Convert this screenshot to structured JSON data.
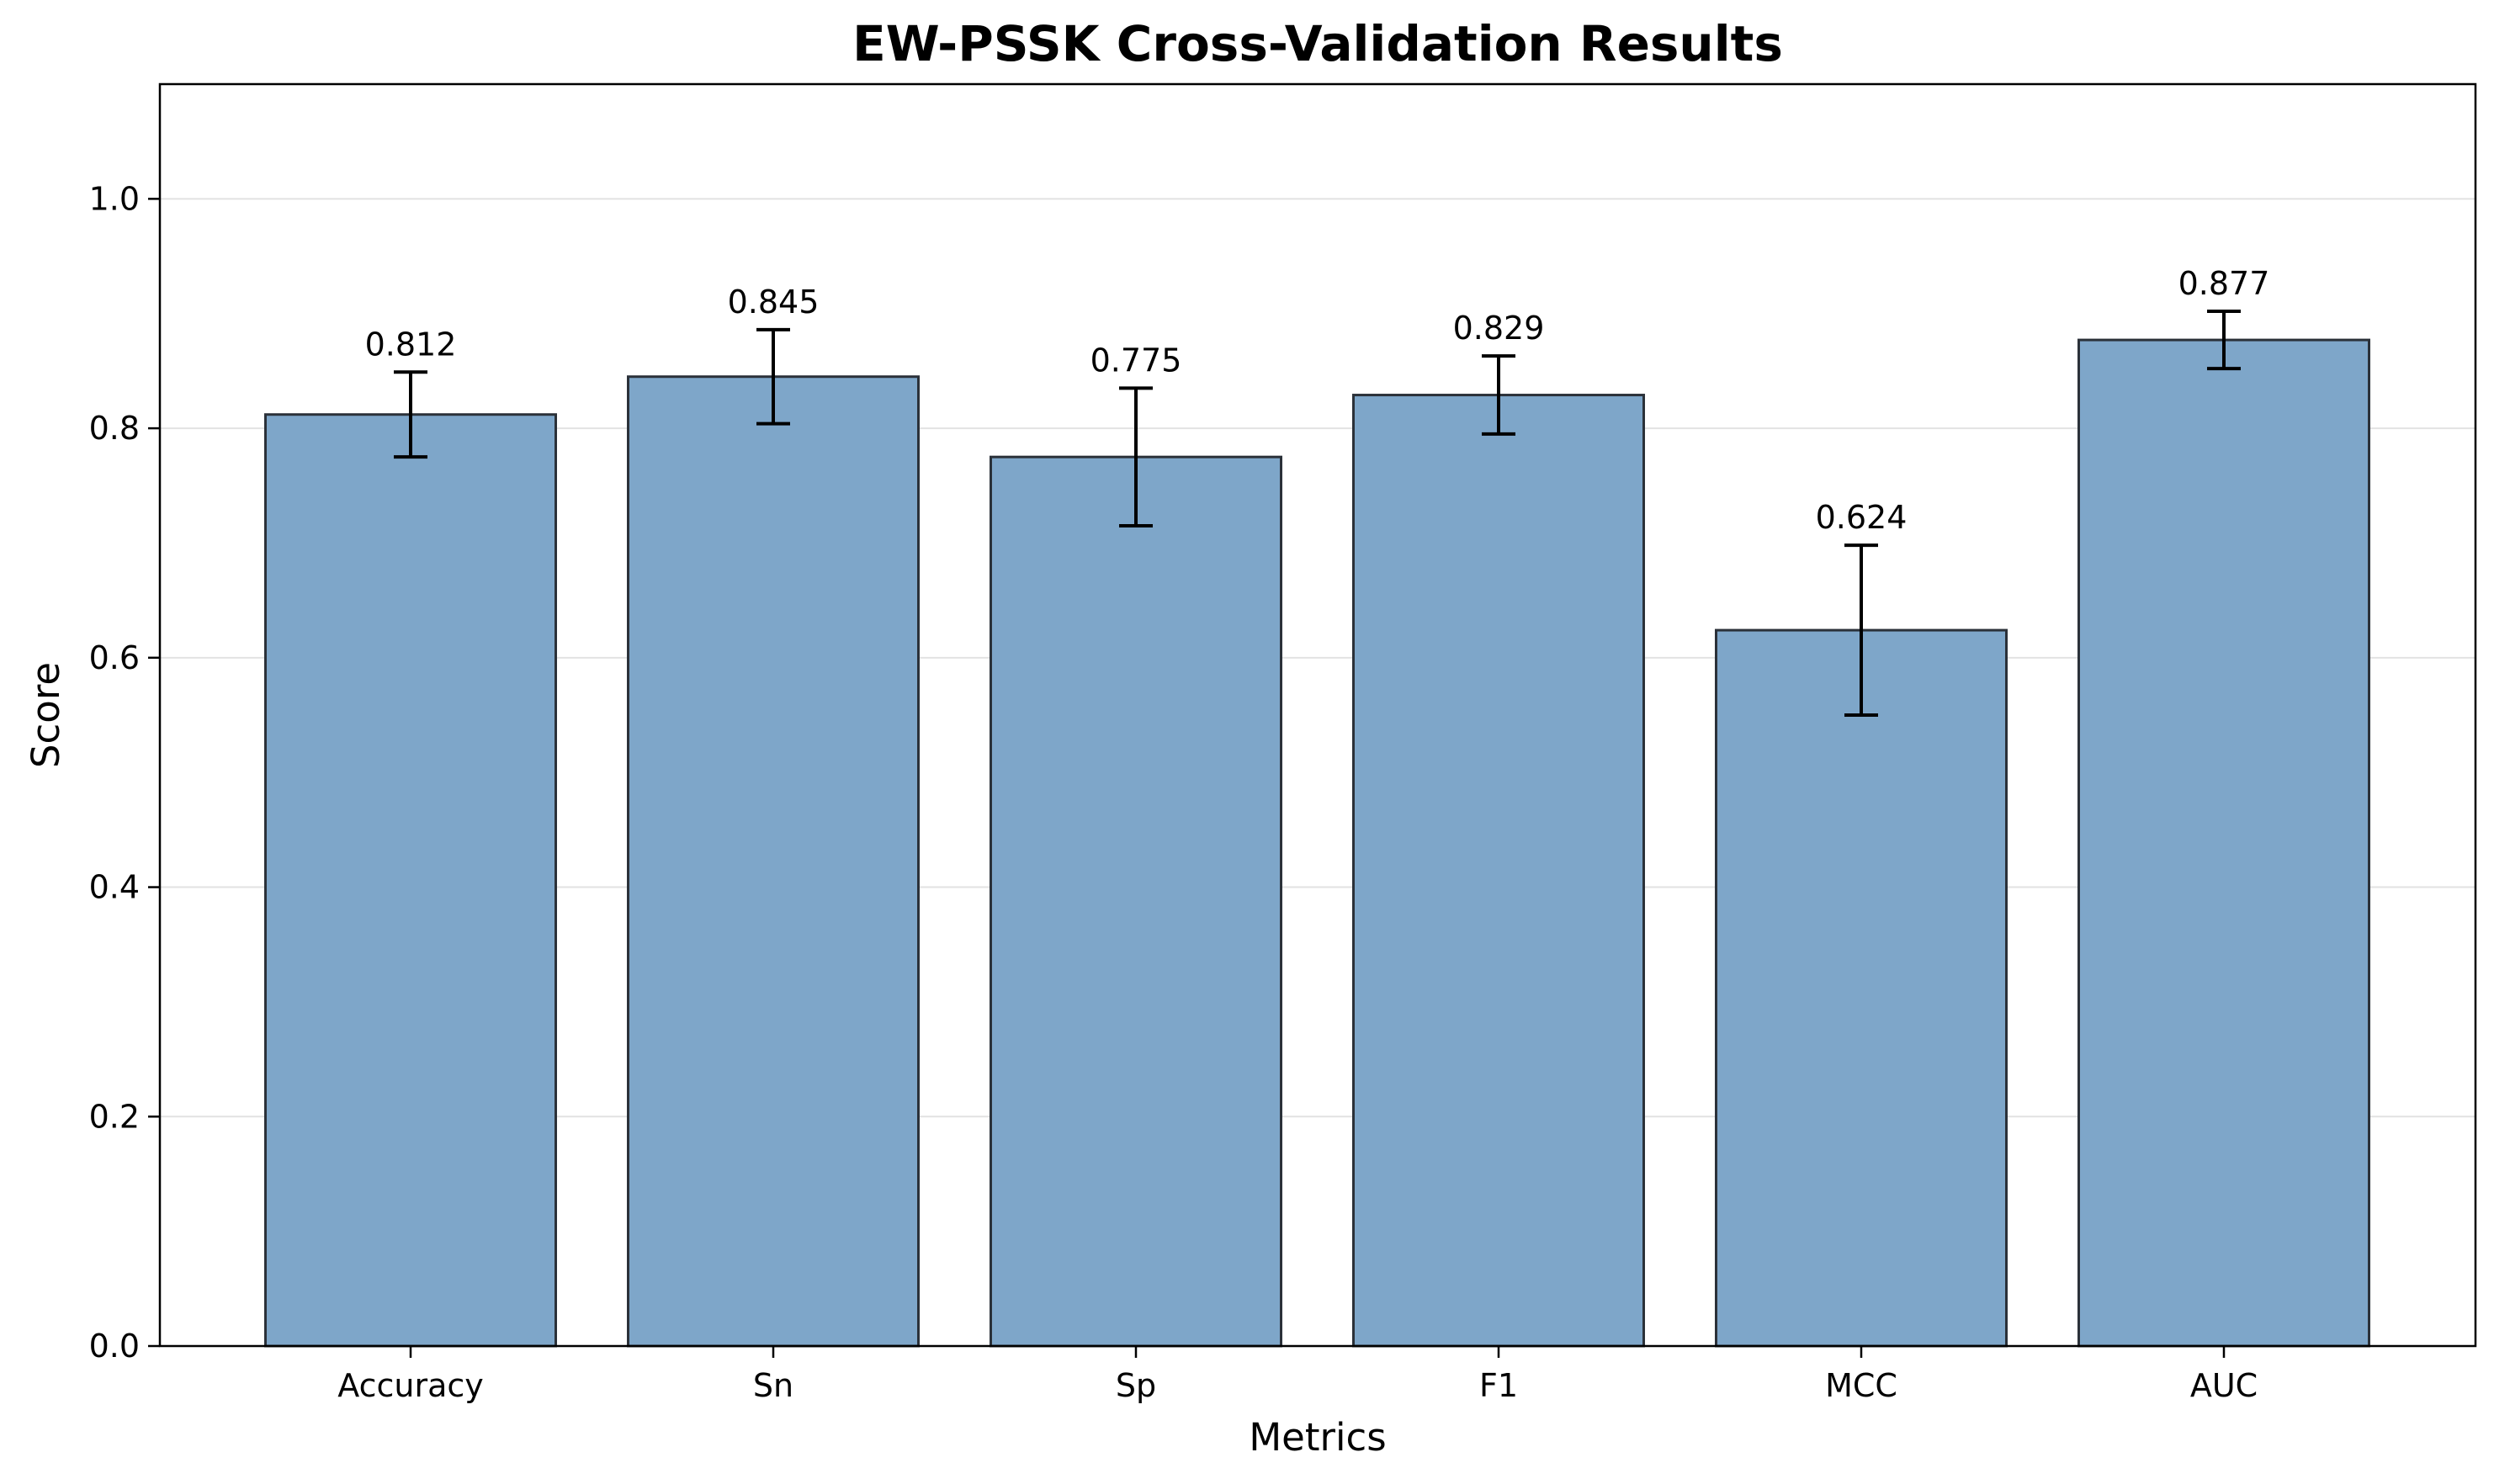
{
  "chart_data": {
    "type": "bar",
    "title": "EW-PSSK Cross-Validation Results",
    "xlabel": "Metrics",
    "ylabel": "Score",
    "categories": [
      "Accuracy",
      "Sn",
      "Sp",
      "F1",
      "MCC",
      "AUC"
    ],
    "values": [
      0.812,
      0.845,
      0.775,
      0.829,
      0.624,
      0.877
    ],
    "errors": [
      0.037,
      0.041,
      0.06,
      0.034,
      0.074,
      0.025
    ],
    "value_labels": [
      "0.812",
      "0.845",
      "0.775",
      "0.829",
      "0.624",
      "0.877"
    ],
    "ylim": [
      0,
      1.1
    ],
    "yticks": [
      0.0,
      0.2,
      0.4,
      0.6,
      0.8,
      1.0
    ],
    "ytick_labels": [
      "0.0",
      "0.2",
      "0.4",
      "0.6",
      "0.8",
      "1.0"
    ],
    "grid": "y-axis only",
    "legend": "none",
    "colors": {
      "bar_fill": "#7ea6c9",
      "bar_edge": "#2b3139",
      "error_bar": "#000000",
      "grid": "#e2e2e2",
      "axes": "#000000"
    }
  }
}
